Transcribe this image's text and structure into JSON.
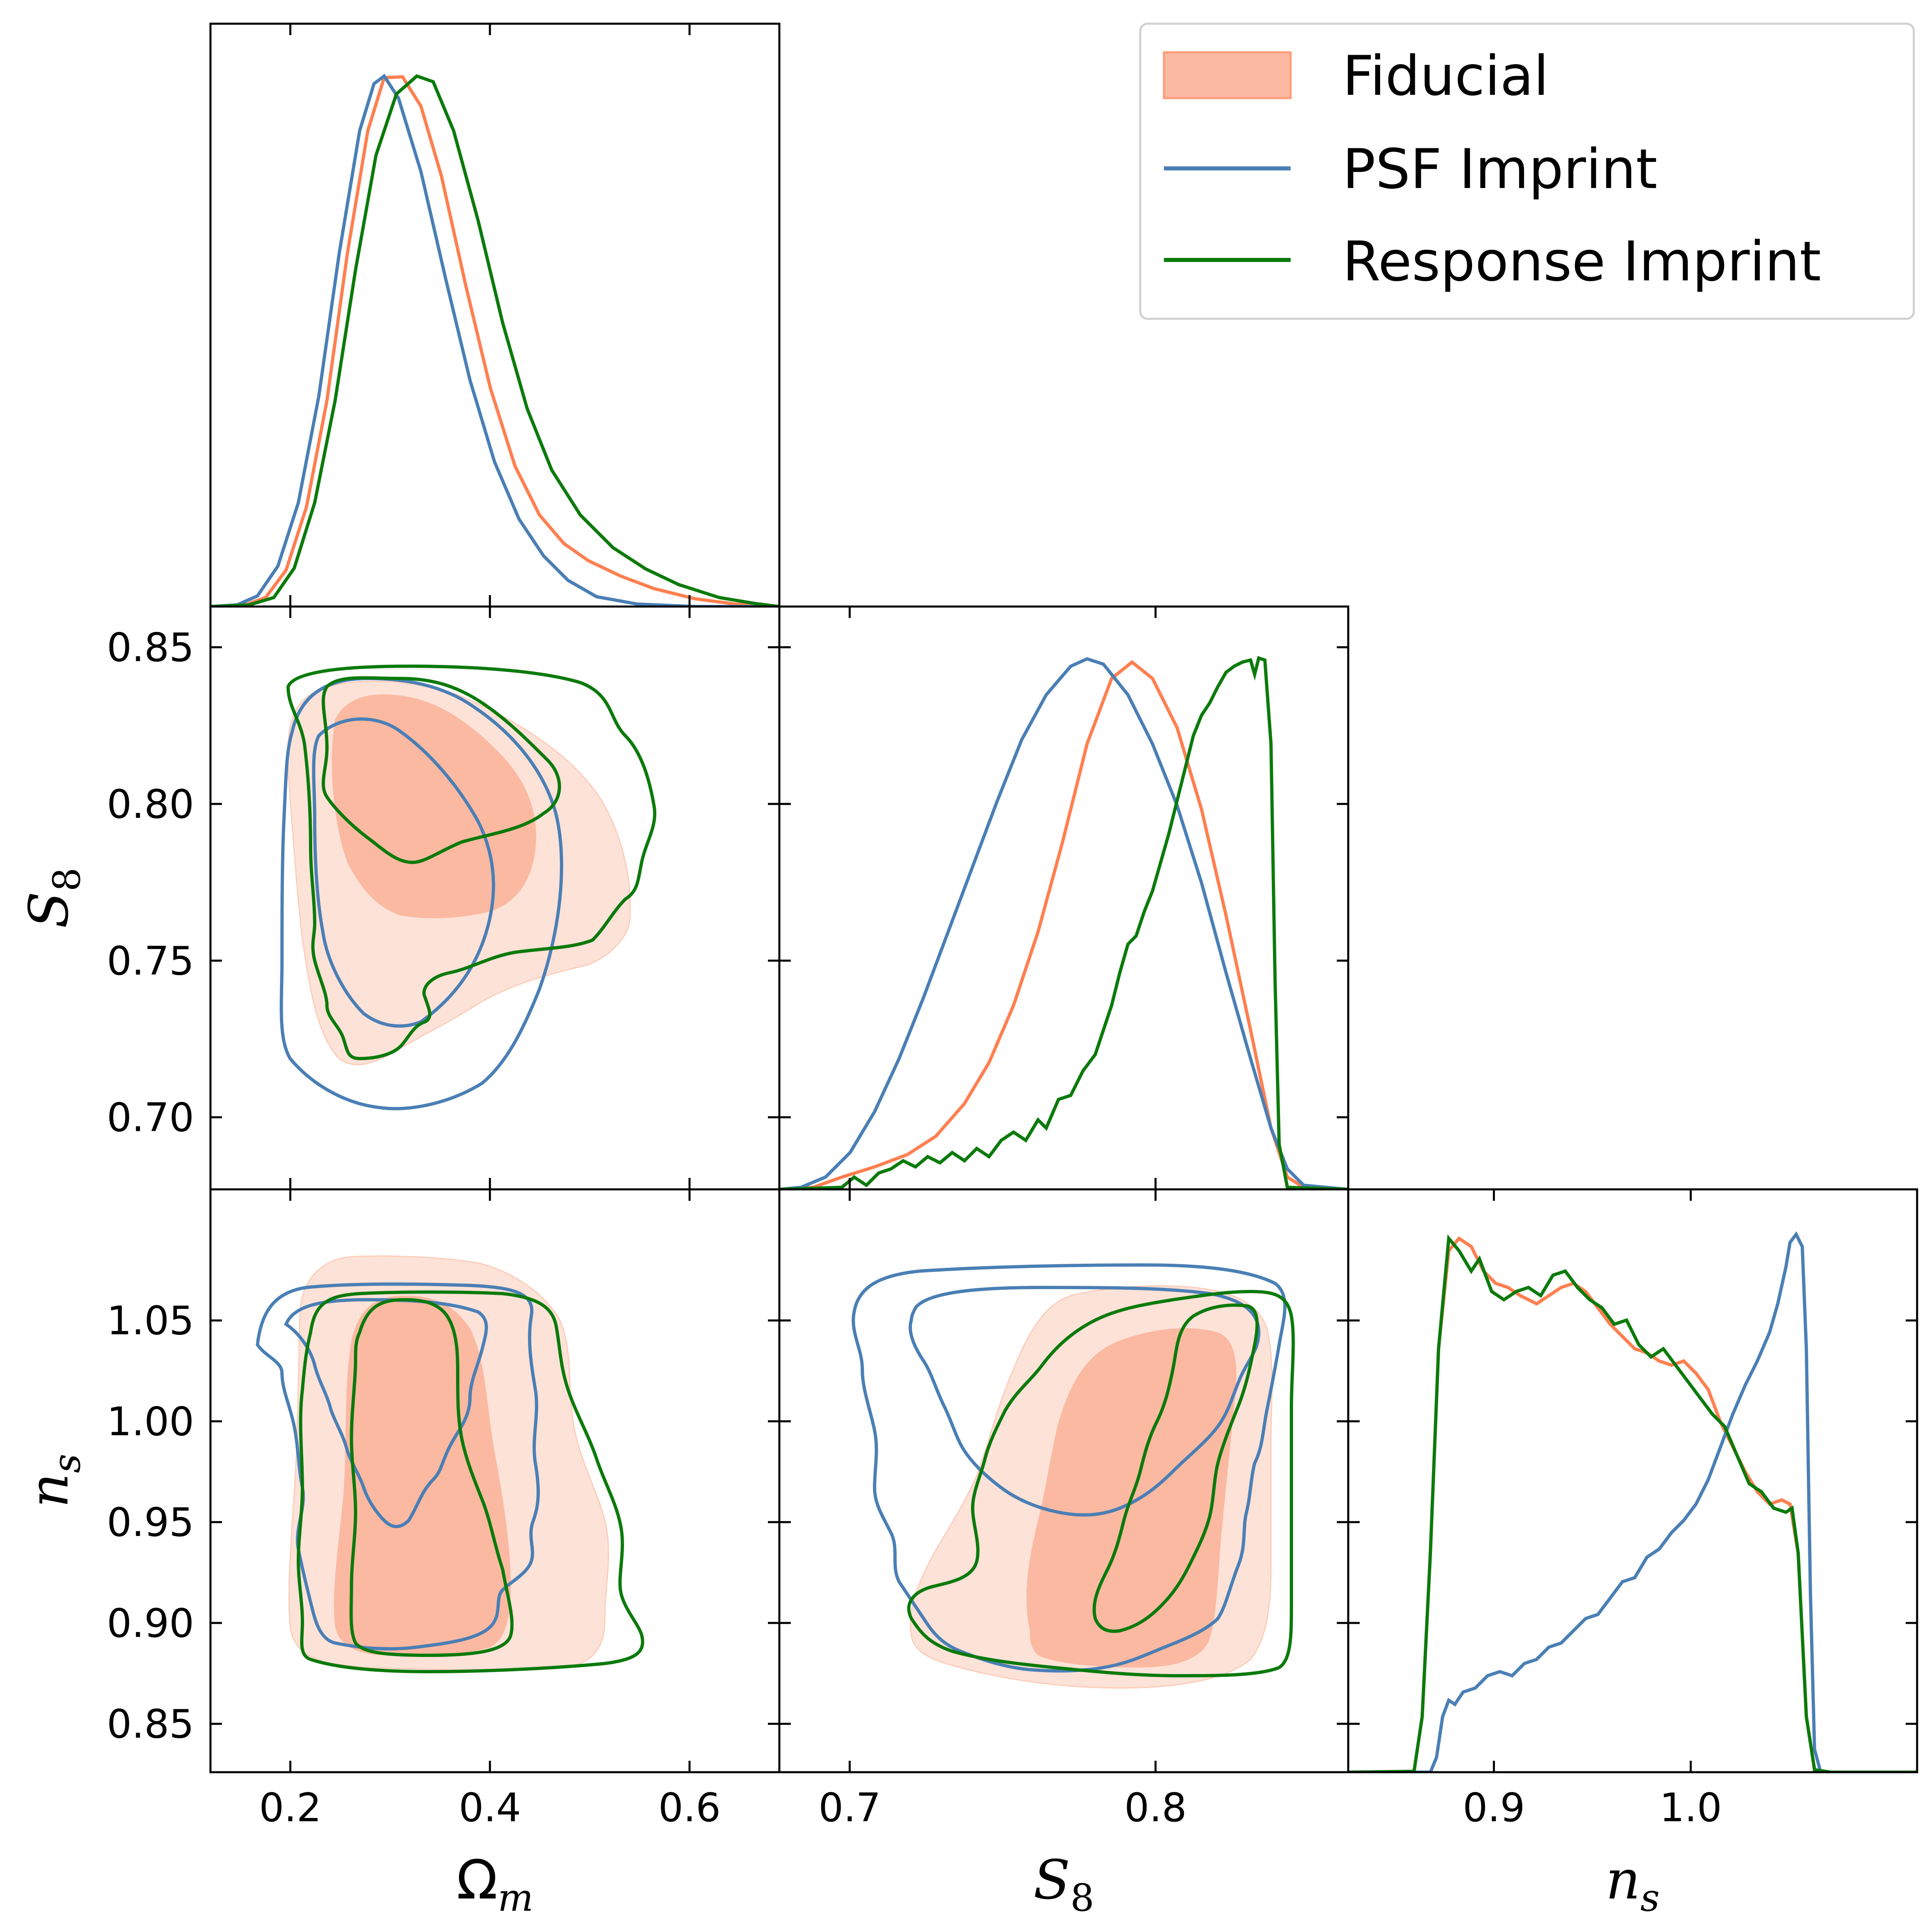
{
  "colors": {
    "fiducial": "#FF7F50",
    "fiducial_fill_inner": "#FBB9A1",
    "fiducial_fill_outer": "#FDE2D8",
    "psf": "#4A7FB5",
    "response": "#0B7A0B"
  },
  "legend": {
    "items": [
      {
        "label": "Fiducial",
        "style": "filled",
        "color": "#FF9B78"
      },
      {
        "label": "PSF Imprint",
        "style": "line",
        "color": "#4A7FB5"
      },
      {
        "label": "Response Imprint",
        "style": "line",
        "color": "#0B7A0B"
      }
    ],
    "placement": "top-right"
  },
  "axes": {
    "omega_m": {
      "symbol": "Ω",
      "sub": "m",
      "lim": [
        0.12,
        0.69
      ],
      "ticks": [
        "0.2",
        "0.4",
        "0.6"
      ],
      "tick_values": [
        0.2,
        0.4,
        0.6
      ]
    },
    "s8": {
      "symbol": "S",
      "sub": "8",
      "lim": [
        0.677,
        0.863
      ],
      "ticks": [
        "0.70",
        "0.75",
        "0.80",
        "0.85"
      ],
      "tick_values": [
        0.7,
        0.75,
        0.8,
        0.85
      ],
      "xticks": [
        "0.7",
        "0.8"
      ],
      "xtick_values": [
        0.7,
        0.8
      ]
    },
    "ns": {
      "symbol": "n",
      "sub": "s",
      "lim": [
        0.826,
        1.115
      ],
      "ticks": [
        "0.85",
        "0.90",
        "0.95",
        "1.00",
        "1.05"
      ],
      "tick_values": [
        0.85,
        0.9,
        0.95,
        1.0,
        1.05
      ],
      "xticks": [
        "0.9",
        "1.0"
      ],
      "xtick_values": [
        0.9,
        1.0
      ]
    }
  },
  "chart_data": {
    "type": "corner",
    "parameters": [
      "Ω_m",
      "S_8",
      "n_s"
    ],
    "series": [
      {
        "name": "Fiducial",
        "style": "filled contours",
        "peak": {
          "omega_m": 0.33,
          "s8": 0.8,
          "ns": 0.88
        },
        "marginal_omega_m": [
          [
            0.18,
            0
          ],
          [
            0.22,
            0.04
          ],
          [
            0.25,
            0.3
          ],
          [
            0.29,
            0.78
          ],
          [
            0.33,
            1.0
          ],
          [
            0.37,
            0.85
          ],
          [
            0.41,
            0.55
          ],
          [
            0.45,
            0.27
          ],
          [
            0.49,
            0.1
          ],
          [
            0.55,
            0.02
          ],
          [
            0.62,
            0.002
          ]
        ],
        "marginal_s8": [
          [
            0.68,
            0
          ],
          [
            0.7,
            0.03
          ],
          [
            0.73,
            0.12
          ],
          [
            0.75,
            0.3
          ],
          [
            0.77,
            0.62
          ],
          [
            0.79,
            0.9
          ],
          [
            0.8,
            1.0
          ],
          [
            0.81,
            0.95
          ],
          [
            0.82,
            0.8
          ],
          [
            0.83,
            0.5
          ],
          [
            0.84,
            0.15
          ],
          [
            0.85,
            0.01
          ],
          [
            0.86,
            0
          ]
        ],
        "marginal_ns": [
          [
            0.865,
            0
          ],
          [
            0.875,
            0.45
          ],
          [
            0.883,
            0.96
          ],
          [
            0.89,
            0.96
          ],
          [
            0.92,
            0.91
          ],
          [
            0.95,
            0.92
          ],
          [
            0.97,
            0.85
          ],
          [
            0.99,
            0.78
          ],
          [
            1.02,
            0.75
          ],
          [
            1.04,
            0.6
          ],
          [
            1.05,
            0.52
          ],
          [
            1.055,
            0.2
          ],
          [
            1.065,
            0
          ]
        ]
      },
      {
        "name": "PSF Imprint",
        "style": "line contours",
        "peak": {
          "omega_m": 0.31,
          "s8": 0.776,
          "ns": 1.056
        },
        "marginal_omega_m": [
          [
            0.16,
            0
          ],
          [
            0.2,
            0.03
          ],
          [
            0.23,
            0.25
          ],
          [
            0.27,
            0.75
          ],
          [
            0.31,
            1.0
          ],
          [
            0.35,
            0.78
          ],
          [
            0.39,
            0.45
          ],
          [
            0.43,
            0.17
          ],
          [
            0.47,
            0.04
          ],
          [
            0.53,
            0.005
          ],
          [
            0.6,
            0
          ]
        ],
        "marginal_s8": [
          [
            0.68,
            0
          ],
          [
            0.7,
            0.05
          ],
          [
            0.72,
            0.2
          ],
          [
            0.74,
            0.45
          ],
          [
            0.76,
            0.78
          ],
          [
            0.776,
            1.0
          ],
          [
            0.79,
            0.93
          ],
          [
            0.8,
            0.8
          ],
          [
            0.82,
            0.45
          ],
          [
            0.84,
            0.1
          ],
          [
            0.85,
            0.005
          ],
          [
            0.86,
            0
          ]
        ],
        "marginal_ns": [
          [
            0.87,
            0
          ],
          [
            0.875,
            0.03
          ],
          [
            0.89,
            0.12
          ],
          [
            0.92,
            0.2
          ],
          [
            0.95,
            0.3
          ],
          [
            0.98,
            0.42
          ],
          [
            1.0,
            0.55
          ],
          [
            1.02,
            0.65
          ],
          [
            1.04,
            0.82
          ],
          [
            1.05,
            0.9
          ],
          [
            1.055,
            1.0
          ],
          [
            1.06,
            0.3
          ],
          [
            1.065,
            0
          ]
        ]
      },
      {
        "name": "Response Imprint",
        "style": "line contours",
        "peak": {
          "omega_m": 0.355,
          "s8": 0.836,
          "ns": 0.882
        },
        "marginal_omega_m": [
          [
            0.18,
            0
          ],
          [
            0.23,
            0.05
          ],
          [
            0.26,
            0.25
          ],
          [
            0.3,
            0.65
          ],
          [
            0.34,
            0.97
          ],
          [
            0.355,
            1.0
          ],
          [
            0.39,
            0.88
          ],
          [
            0.43,
            0.55
          ],
          [
            0.47,
            0.28
          ],
          [
            0.52,
            0.1
          ],
          [
            0.58,
            0.02
          ],
          [
            0.65,
            0
          ]
        ],
        "marginal_s8": [
          [
            0.68,
            0
          ],
          [
            0.7,
            0.02
          ],
          [
            0.72,
            0.06
          ],
          [
            0.75,
            0.12
          ],
          [
            0.78,
            0.22
          ],
          [
            0.79,
            0.42
          ],
          [
            0.8,
            0.6
          ],
          [
            0.81,
            0.75
          ],
          [
            0.82,
            0.88
          ],
          [
            0.83,
            0.97
          ],
          [
            0.84,
            1.0
          ],
          [
            0.842,
            0.6
          ],
          [
            0.845,
            0
          ]
        ],
        "marginal_ns": [
          [
            0.865,
            0
          ],
          [
            0.875,
            0.5
          ],
          [
            0.882,
            1.0
          ],
          [
            0.89,
            0.92
          ],
          [
            0.92,
            0.86
          ],
          [
            0.94,
            0.88
          ],
          [
            0.97,
            0.85
          ],
          [
            0.99,
            0.78
          ],
          [
            1.02,
            0.7
          ],
          [
            1.04,
            0.52
          ],
          [
            1.055,
            0.5
          ],
          [
            1.06,
            0.2
          ],
          [
            1.065,
            0
          ]
        ]
      }
    ],
    "panels": [
      "Ω_m marginal",
      "S_8 vs Ω_m",
      "S_8 marginal",
      "n_s vs Ω_m",
      "n_s vs S_8",
      "n_s marginal"
    ],
    "grid": false,
    "tick_direction": "in"
  }
}
